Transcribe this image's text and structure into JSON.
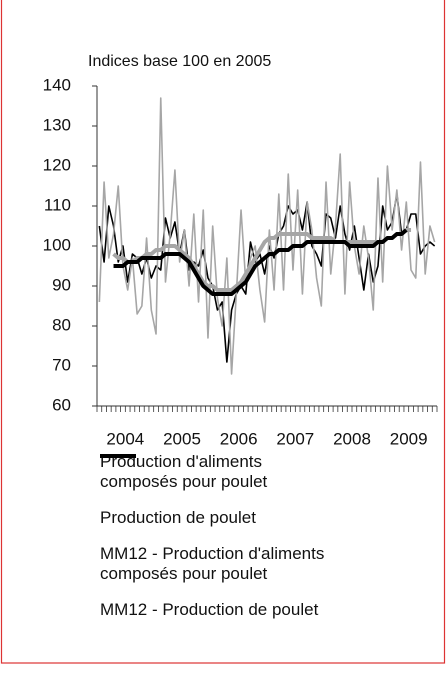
{
  "chart_data": {
    "type": "line",
    "y_label": "Indices base 100 en 2005",
    "categories": [
      null,
      null,
      null,
      null,
      null,
      null,
      "2004",
      null,
      null,
      null,
      null,
      null,
      null,
      null,
      null,
      null,
      null,
      null,
      "2005",
      null,
      null,
      null,
      null,
      null,
      null,
      null,
      null,
      null,
      null,
      null,
      "2006",
      null,
      null,
      null,
      null,
      null,
      null,
      null,
      null,
      null,
      null,
      null,
      "2007",
      null,
      null,
      null,
      null,
      null,
      null,
      null,
      null,
      null,
      null,
      null,
      "2008",
      null,
      null,
      null,
      null,
      null,
      null,
      null,
      null,
      null,
      null,
      null,
      "2009",
      null,
      null,
      null,
      null,
      null
    ],
    "ylim": [
      60,
      140
    ],
    "yticks": [
      60,
      70,
      80,
      90,
      100,
      110,
      120,
      130,
      140
    ],
    "series": [
      {
        "name": "Production d'aliments composés pour poulet",
        "color": "#000000",
        "line_width": 1.6,
        "values": [
          105,
          96,
          110,
          105,
          96,
          100,
          91,
          98,
          97,
          93,
          97,
          92,
          95,
          94,
          107,
          102,
          106,
          98,
          104,
          94,
          96,
          95,
          99,
          92,
          90,
          84,
          86,
          71,
          84,
          88,
          90,
          88,
          101,
          96,
          98,
          93,
          100,
          97,
          103,
          105,
          110,
          108,
          109,
          104,
          111,
          100,
          98,
          95,
          108,
          107,
          102,
          110,
          103,
          99,
          105,
          97,
          89,
          98,
          91,
          95,
          110,
          104,
          106,
          113,
          103,
          104,
          108,
          108,
          98,
          100,
          101,
          100
        ]
      },
      {
        "name": "Production de poulet",
        "color": "#a6a6a6",
        "line_width": 1.6,
        "values": [
          86,
          116,
          97,
          103,
          115,
          95,
          89,
          97,
          83,
          85,
          102,
          84,
          78,
          137,
          91,
          103,
          119,
          96,
          104,
          90,
          108,
          86,
          109,
          77,
          105,
          87,
          80,
          97,
          68,
          88,
          109,
          91,
          97,
          100,
          89,
          81,
          104,
          89,
          113,
          89,
          118,
          94,
          114,
          88,
          111,
          104,
          92,
          85,
          116,
          93,
          105,
          123,
          88,
          116,
          100,
          93,
          105,
          97,
          84,
          117,
          91,
          120,
          104,
          114,
          99,
          111,
          94,
          92,
          121,
          93,
          105,
          101
        ]
      },
      {
        "name": "MM12 - Production d'aliments composés pour poulet",
        "color": "#a6a6a6",
        "line_width": 4,
        "values": [
          null,
          null,
          null,
          98,
          97,
          97,
          96,
          96,
          97,
          97,
          98,
          98,
          99,
          99,
          100,
          100,
          100,
          99,
          98,
          97,
          95,
          93,
          91,
          90,
          90,
          89,
          89,
          89,
          89,
          90,
          91,
          93,
          95,
          97,
          99,
          101,
          102,
          102,
          103,
          103,
          103,
          103,
          103,
          103,
          103,
          102,
          102,
          102,
          102,
          102,
          101,
          101,
          101,
          101,
          101,
          101,
          101,
          101,
          101,
          101,
          101,
          102,
          102,
          103,
          103,
          104,
          104,
          null,
          null,
          null,
          null,
          null
        ]
      },
      {
        "name": "MM12 - Production de poulet",
        "color": "#000000",
        "line_width": 4,
        "values": [
          null,
          null,
          null,
          95,
          95,
          95,
          96,
          96,
          96,
          97,
          97,
          97,
          97,
          97,
          98,
          98,
          98,
          98,
          97,
          96,
          94,
          92,
          90,
          89,
          88,
          88,
          88,
          88,
          88,
          89,
          90,
          91,
          93,
          95,
          96,
          97,
          98,
          98,
          99,
          99,
          99,
          100,
          100,
          100,
          101,
          101,
          101,
          101,
          101,
          101,
          101,
          101,
          101,
          100,
          100,
          100,
          100,
          100,
          100,
          101,
          101,
          102,
          102,
          103,
          103,
          104,
          null,
          null,
          null,
          null,
          null,
          null
        ]
      }
    ]
  }
}
